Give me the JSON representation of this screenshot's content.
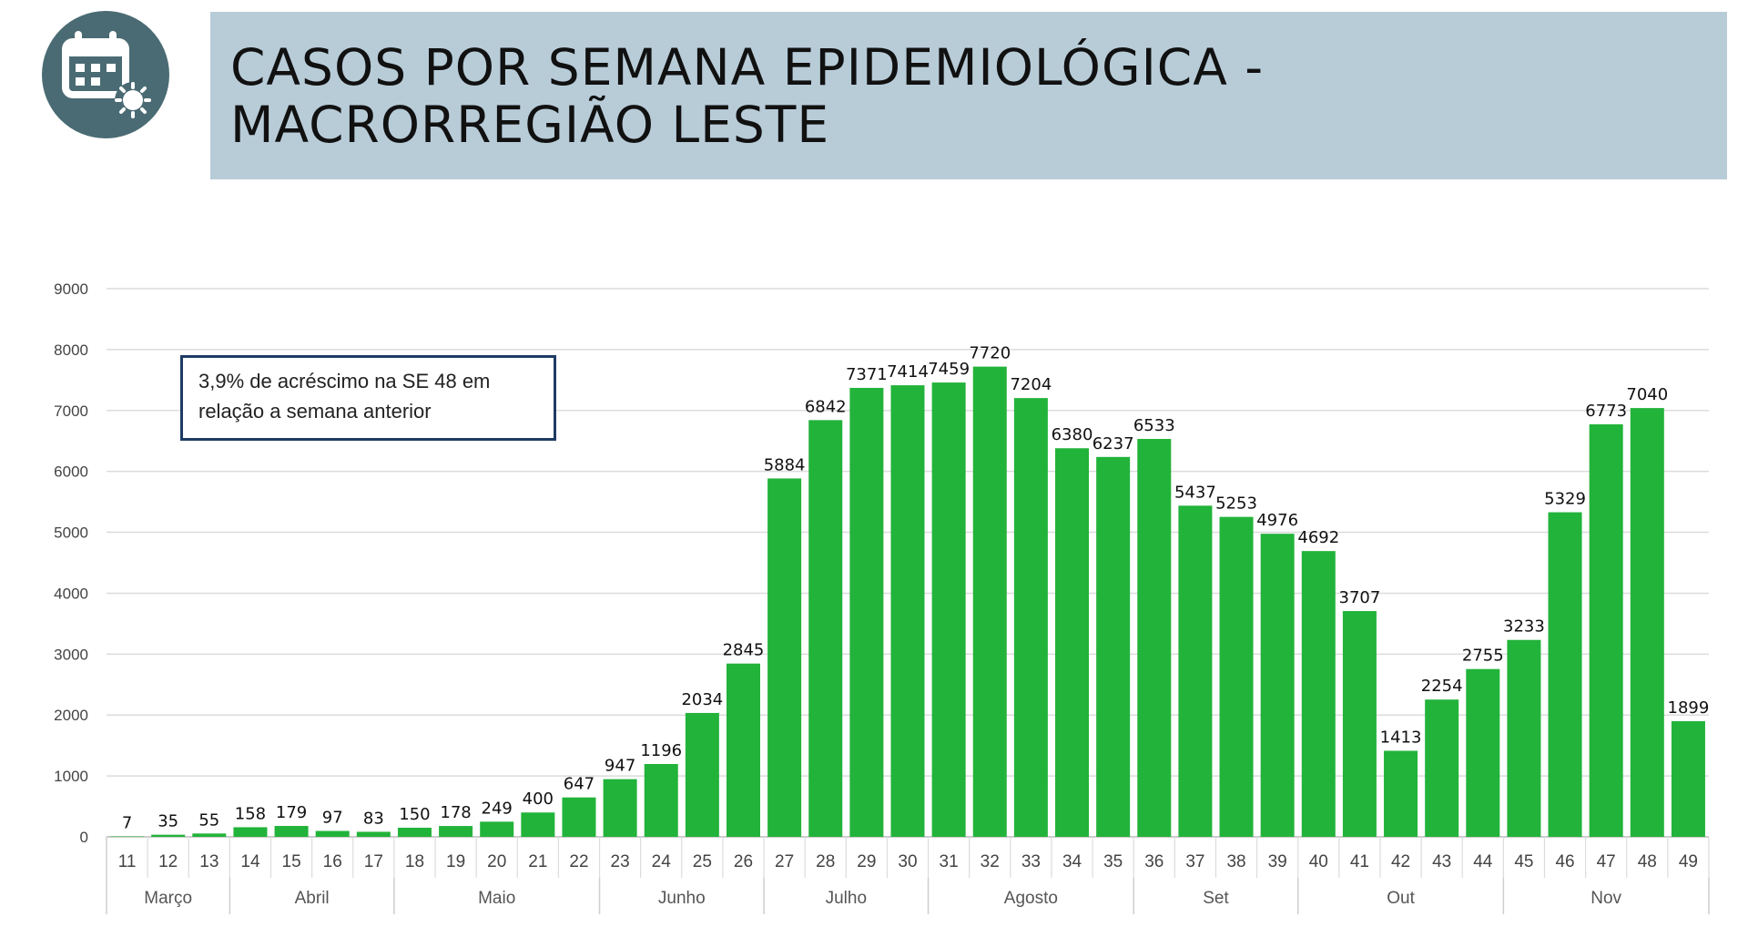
{
  "header": {
    "title_line1": "CASOS POR SEMANA EPIDEMIOLÓGICA -",
    "title_line2": "MACRORREGIÃO LESTE",
    "icon": "calendar-virus-icon",
    "icon_color": "#4a6b74",
    "banner_color": "#b8ccd8"
  },
  "annotation": {
    "line1": "3,9% de acréscimo na SE 48 em",
    "line2": "relação a semana anterior"
  },
  "chart_data": {
    "type": "bar",
    "categories": [
      "11",
      "12",
      "13",
      "14",
      "15",
      "16",
      "17",
      "18",
      "19",
      "20",
      "21",
      "22",
      "23",
      "24",
      "25",
      "26",
      "27",
      "28",
      "29",
      "30",
      "31",
      "32",
      "33",
      "34",
      "35",
      "36",
      "37",
      "38",
      "39",
      "40",
      "41",
      "42",
      "43",
      "44",
      "45",
      "46",
      "47",
      "48",
      "49"
    ],
    "values": [
      7,
      35,
      55,
      158,
      179,
      97,
      83,
      150,
      178,
      249,
      400,
      647,
      947,
      1196,
      2034,
      2845,
      5884,
      6842,
      7371,
      7414,
      7459,
      7720,
      7204,
      6380,
      6237,
      6533,
      5437,
      5253,
      4976,
      4692,
      3707,
      1413,
      2254,
      2755,
      3233,
      5329,
      6773,
      7040,
      1899
    ],
    "months": [
      {
        "name": "Março",
        "span": 3
      },
      {
        "name": "Abril",
        "span": 4
      },
      {
        "name": "Maio",
        "span": 5
      },
      {
        "name": "Junho",
        "span": 4
      },
      {
        "name": "Julho",
        "span": 4
      },
      {
        "name": "Agosto",
        "span": 5
      },
      {
        "name": "Set",
        "span": 4
      },
      {
        "name": "Out",
        "span": 5
      },
      {
        "name": "Nov",
        "span": 5
      }
    ],
    "yticks": [
      0,
      1000,
      2000,
      3000,
      4000,
      5000,
      6000,
      7000,
      8000,
      9000
    ],
    "ylim": [
      0,
      9000
    ],
    "bar_color": "#22b33a",
    "grid": true,
    "data_labels": true
  }
}
